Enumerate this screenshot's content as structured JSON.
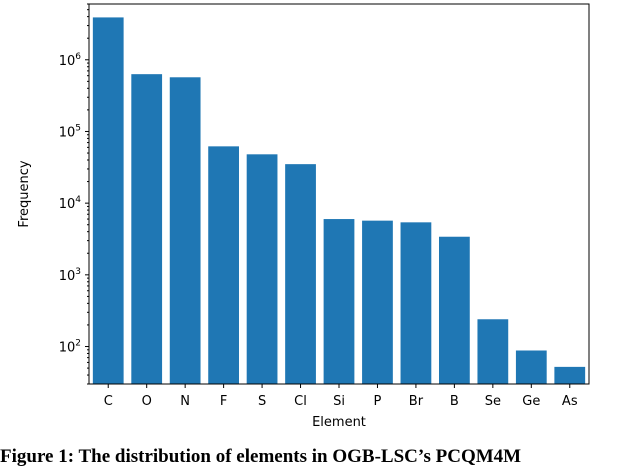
{
  "caption": "Figure 1: The distribution of elements in OGB-LSC’s PCQM4M",
  "chart_data": {
    "type": "bar",
    "title": "",
    "xlabel": "Element",
    "ylabel": "Frequency",
    "yscale": "log",
    "ylim": [
      30,
      6000000
    ],
    "yticks": [
      100,
      1000,
      10000,
      100000,
      1000000
    ],
    "ytick_labels": [
      {
        "base": "10",
        "exp": "2"
      },
      {
        "base": "10",
        "exp": "3"
      },
      {
        "base": "10",
        "exp": "4"
      },
      {
        "base": "10",
        "exp": "5"
      },
      {
        "base": "10",
        "exp": "6"
      }
    ],
    "categories": [
      "C",
      "O",
      "N",
      "F",
      "S",
      "Cl",
      "Si",
      "P",
      "Br",
      "B",
      "Se",
      "Ge",
      "As"
    ],
    "values": [
      3900000,
      630000,
      570000,
      62000,
      48000,
      35000,
      6000,
      5700,
      5400,
      3400,
      240,
      88,
      52
    ],
    "bar_color": "#1f77b4",
    "grid": false
  }
}
